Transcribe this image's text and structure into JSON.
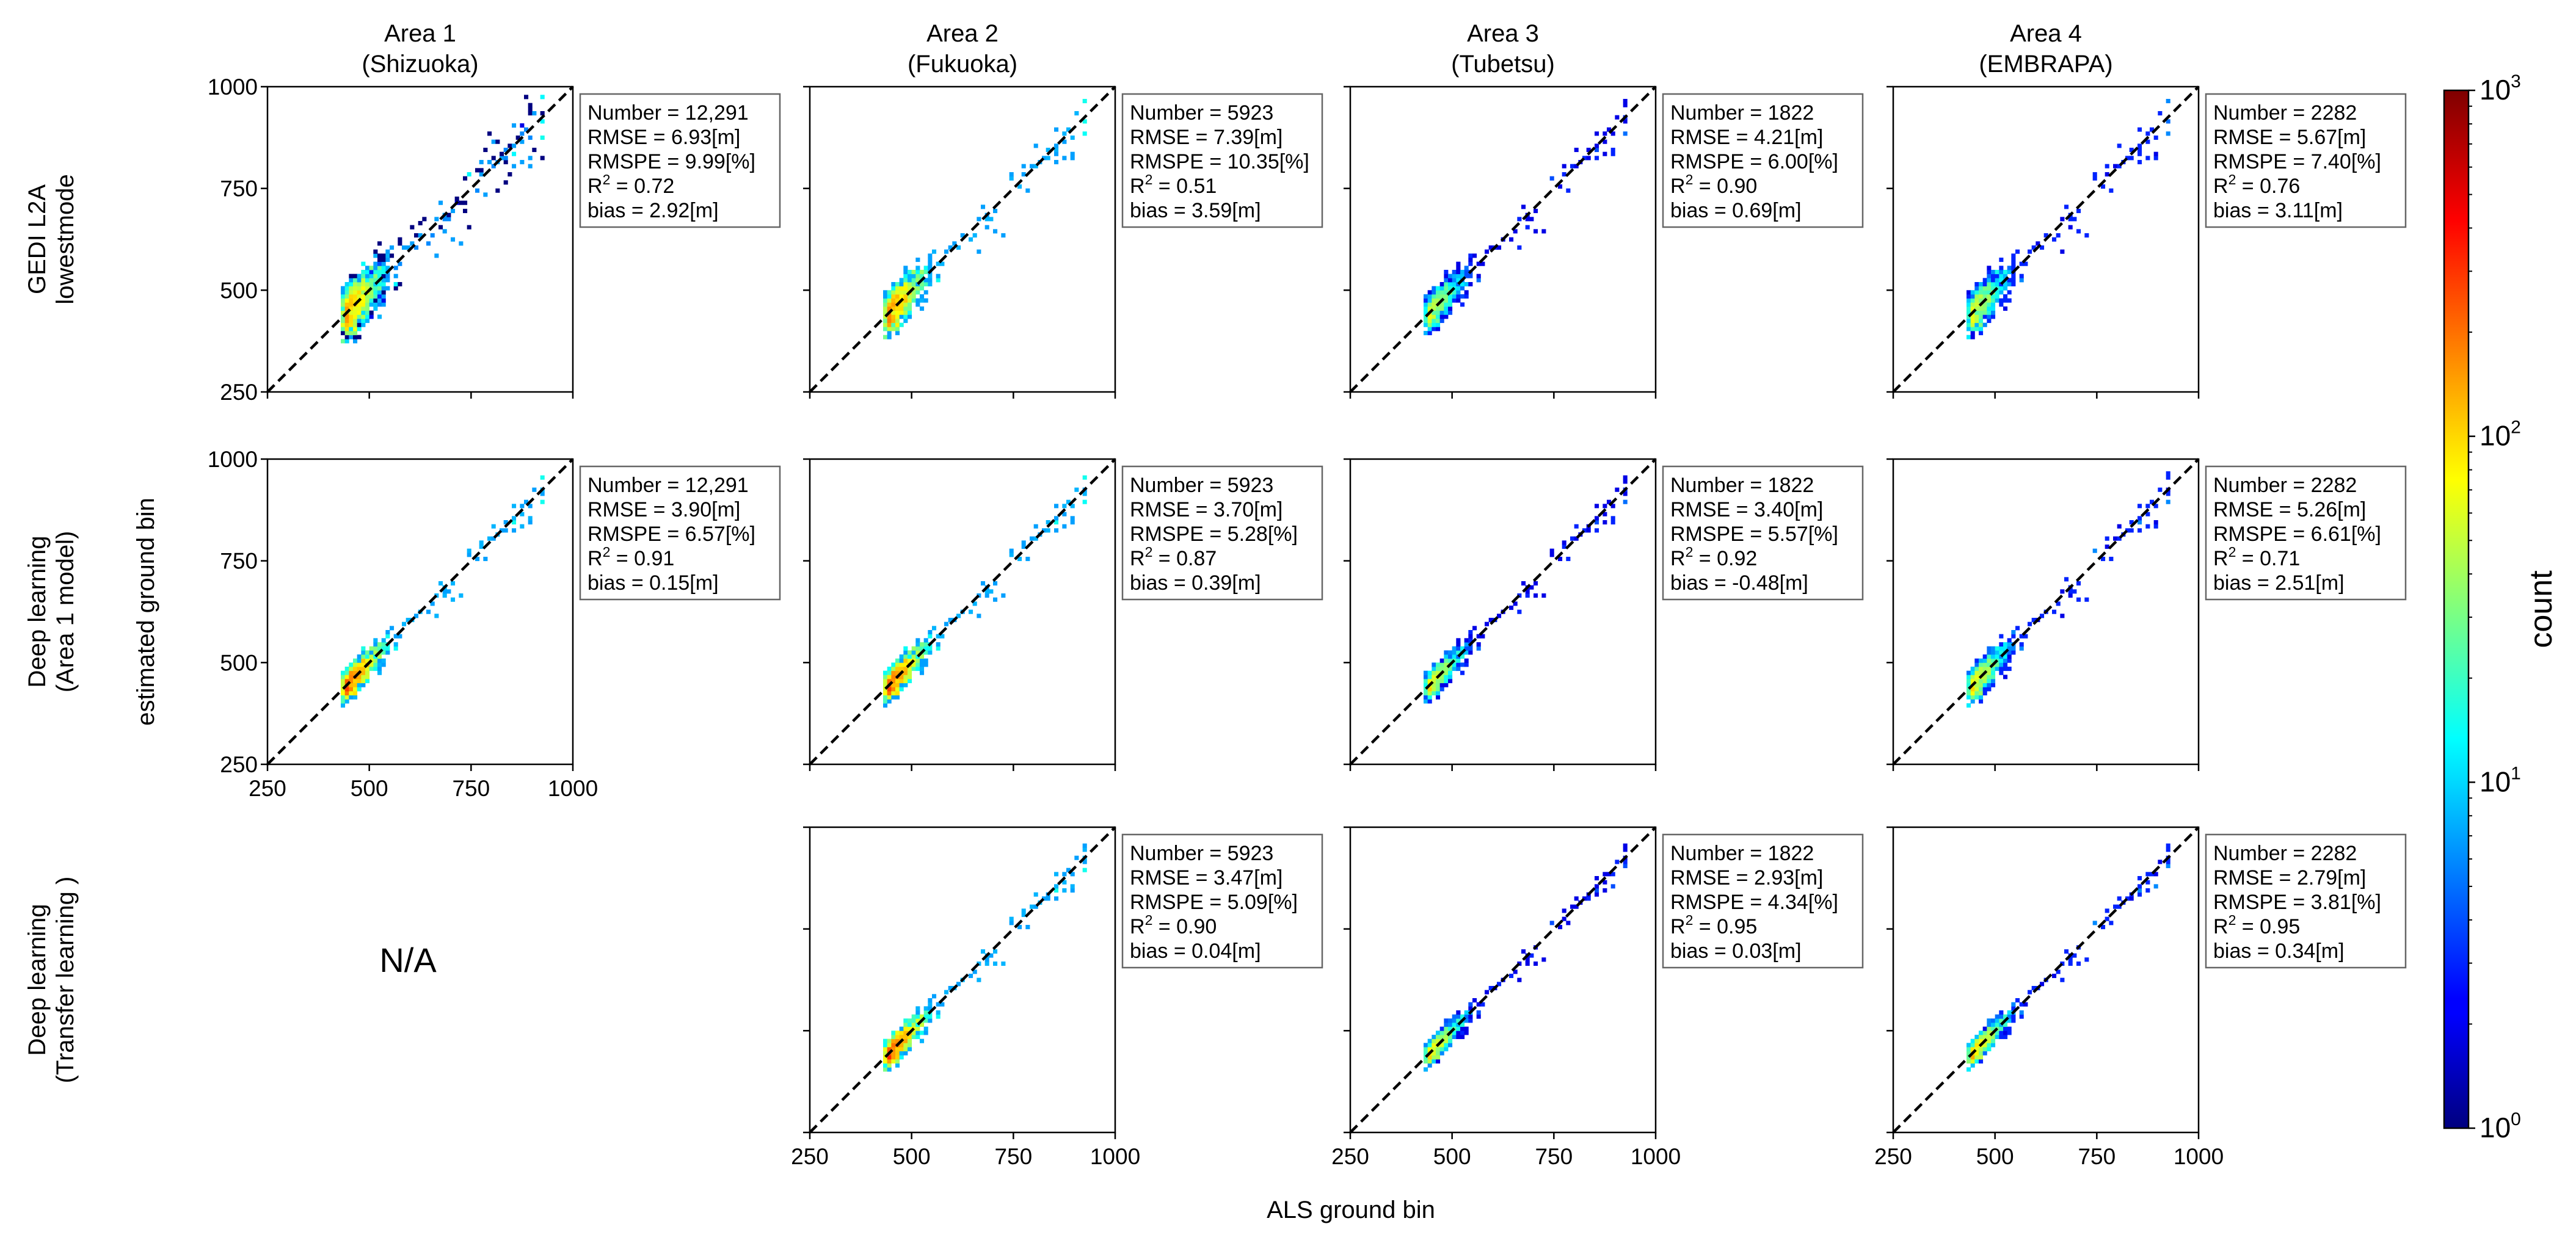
{
  "figure": {
    "col_titles": [
      {
        "line1": "Area 1",
        "line2": "(Shizuoka)"
      },
      {
        "line1": "Area 2",
        "line2": "(Fukuoka)"
      },
      {
        "line1": "Area 3",
        "line2": "(Tubetsu)"
      },
      {
        "line1": "Area 4",
        "line2": "(EMBRAPA)"
      }
    ],
    "row_titles": [
      {
        "line1": "GEDI L2A",
        "line2": "lowestmode"
      },
      {
        "line1": "Deep learning",
        "line2": "(Area 1 model)"
      },
      {
        "line1": "Deep learning",
        "line2": "(Transfer learning )"
      }
    ],
    "xlabel": "ALS ground bin",
    "ylabel": "estimated ground bin",
    "na_label": "N/A"
  },
  "colorbar": {
    "label": "count",
    "ticks": [
      {
        "base": "10",
        "exp": "0"
      },
      {
        "base": "10",
        "exp": "1"
      },
      {
        "base": "10",
        "exp": "2"
      },
      {
        "base": "10",
        "exp": "3"
      }
    ],
    "scale": "log",
    "range": [
      1,
      1000
    ],
    "colormap": "jet"
  },
  "chart_data": {
    "type": "heatmap",
    "subtype": "2D histogram grid (estimated vs ALS ground bin)",
    "axis_range": [
      250,
      1000
    ],
    "tick_values": [
      250,
      500,
      750,
      1000
    ],
    "panels": [
      {
        "row": 0,
        "col": 0,
        "number": "12,291",
        "rmse": "6.93",
        "rmspe": "9.99",
        "r2": "0.72",
        "bias": "2.92",
        "spread": 0.17
      },
      {
        "row": 0,
        "col": 1,
        "number": "5923",
        "rmse": "7.39",
        "rmspe": "10.35",
        "r2": "0.51",
        "bias": "3.59",
        "spread": 0.14
      },
      {
        "row": 0,
        "col": 2,
        "number": "1822",
        "rmse": "4.21",
        "rmspe": "6.00",
        "r2": "0.90",
        "bias": "0.69",
        "spread": 0.12
      },
      {
        "row": 0,
        "col": 3,
        "number": "2282",
        "rmse": "5.67",
        "rmspe": "7.40",
        "r2": "0.76",
        "bias": "3.11",
        "spread": 0.14
      },
      {
        "row": 1,
        "col": 0,
        "number": "12,291",
        "rmse": "3.90",
        "rmspe": "6.57",
        "r2": "0.91",
        "bias": "0.15",
        "spread": 0.1
      },
      {
        "row": 1,
        "col": 1,
        "number": "5923",
        "rmse": "3.70",
        "rmspe": "5.28",
        "r2": "0.87",
        "bias": "0.39",
        "spread": 0.1
      },
      {
        "row": 1,
        "col": 2,
        "number": "1822",
        "rmse": "3.40",
        "rmspe": "5.57",
        "r2": "0.92",
        "bias": "-0.48",
        "spread": 0.09
      },
      {
        "row": 1,
        "col": 3,
        "number": "2282",
        "rmse": "5.26",
        "rmspe": "6.61",
        "r2": "0.71",
        "bias": "2.51",
        "spread": 0.11
      },
      {
        "row": 2,
        "col": 1,
        "number": "5923",
        "rmse": "3.47",
        "rmspe": "5.09",
        "r2": "0.90",
        "bias": "0.04",
        "spread": 0.09
      },
      {
        "row": 2,
        "col": 2,
        "number": "1822",
        "rmse": "2.93",
        "rmspe": "4.34",
        "r2": "0.95",
        "bias": "0.03",
        "spread": 0.08
      },
      {
        "row": 2,
        "col": 3,
        "number": "2282",
        "rmse": "2.79",
        "rmspe": "3.81",
        "r2": "0.95",
        "bias": "0.34",
        "spread": 0.08
      }
    ],
    "stat_labels": {
      "number": "Number = ",
      "rmse": "RMSE = ",
      "rmspe": "RMSPE = ",
      "r2": "R",
      "bias": "bias = ",
      "unit_m": "[m]",
      "unit_pct": "[%]"
    }
  }
}
